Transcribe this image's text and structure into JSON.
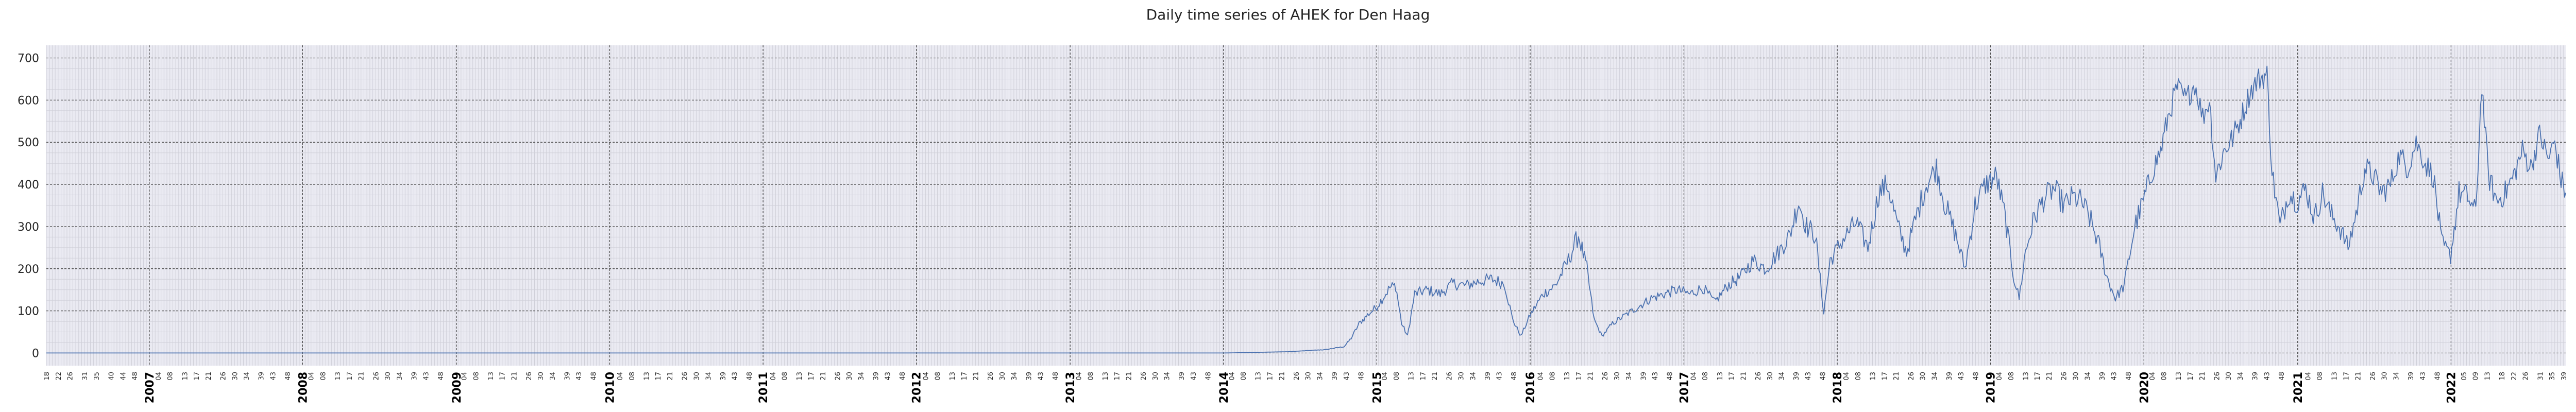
{
  "chart_data": {
    "type": "line",
    "title": "Daily time series of AHEK for Den Haag",
    "xlabel": "",
    "ylabel": "",
    "x_range": [
      "2006-05-01",
      "2022-10-01"
    ],
    "ylim": [
      -30,
      730
    ],
    "y_ticks": [
      0,
      100,
      200,
      300,
      400,
      500,
      600,
      700
    ],
    "year_ticks": [
      "2007",
      "2008",
      "2009",
      "2010",
      "2011",
      "2012",
      "2013",
      "2014",
      "2015",
      "2016",
      "2017",
      "2018",
      "2019",
      "2020",
      "2021",
      "2022"
    ],
    "week_ticks_before_2007": [
      "18",
      "22",
      "26",
      "31",
      "35",
      "40",
      "44",
      "48"
    ],
    "week_ticks_regular": [
      "04",
      "08",
      "13",
      "17",
      "21",
      "26",
      "30",
      "34",
      "39",
      "43",
      "48"
    ],
    "week_ticks_after_2022": [
      "05",
      "09",
      "13",
      "18",
      "22",
      "26",
      "31",
      "35",
      "39"
    ],
    "grid": true,
    "colors": {
      "line": "#4c72b0",
      "background": "#eaeaf2",
      "major_grid": "#3a3a3a",
      "minor_grid": "#cfcfd8"
    },
    "series": [
      {
        "values": [
          [
            "2006-05-01",
            0
          ],
          [
            "2014-01-01",
            0
          ],
          [
            "2014-06-01",
            3
          ],
          [
            "2014-09-01",
            8
          ],
          [
            "2014-10-15",
            15
          ],
          [
            "2014-11-01",
            35
          ],
          [
            "2014-11-20",
            70
          ],
          [
            "2014-12-10",
            90
          ],
          [
            "2015-01-01",
            110
          ],
          [
            "2015-02-01",
            155
          ],
          [
            "2015-02-15",
            160
          ],
          [
            "2015-03-01",
            70
          ],
          [
            "2015-03-15",
            40
          ],
          [
            "2015-04-01",
            140
          ],
          [
            "2015-05-01",
            150
          ],
          [
            "2015-06-01",
            140
          ],
          [
            "2015-07-01",
            165
          ],
          [
            "2015-08-01",
            160
          ],
          [
            "2015-09-01",
            170
          ],
          [
            "2015-10-01",
            175
          ],
          [
            "2015-11-01",
            165
          ],
          [
            "2015-11-20",
            80
          ],
          [
            "2015-12-10",
            40
          ],
          [
            "2016-01-01",
            90
          ],
          [
            "2016-02-01",
            140
          ],
          [
            "2016-03-01",
            160
          ],
          [
            "2016-04-01",
            220
          ],
          [
            "2016-04-25",
            280
          ],
          [
            "2016-05-15",
            200
          ],
          [
            "2016-06-01",
            80
          ],
          [
            "2016-06-20",
            40
          ],
          [
            "2016-07-15",
            70
          ],
          [
            "2016-08-15",
            90
          ],
          [
            "2016-09-15",
            110
          ],
          [
            "2016-10-15",
            130
          ],
          [
            "2016-11-15",
            140
          ],
          [
            "2016-12-15",
            150
          ],
          [
            "2017-01-15",
            140
          ],
          [
            "2017-02-15",
            155
          ],
          [
            "2017-03-15",
            120
          ],
          [
            "2017-04-15",
            160
          ],
          [
            "2017-05-15",
            180
          ],
          [
            "2017-06-15",
            220
          ],
          [
            "2017-07-15",
            200
          ],
          [
            "2017-08-15",
            240
          ],
          [
            "2017-09-10",
            280
          ],
          [
            "2017-10-01",
            360
          ],
          [
            "2017-10-20",
            300
          ],
          [
            "2017-11-10",
            280
          ],
          [
            "2017-11-30",
            95
          ],
          [
            "2017-12-15",
            220
          ],
          [
            "2018-01-15",
            270
          ],
          [
            "2018-02-15",
            310
          ],
          [
            "2018-03-15",
            250
          ],
          [
            "2018-04-10",
            380
          ],
          [
            "2018-05-01",
            400
          ],
          [
            "2018-05-25",
            300
          ],
          [
            "2018-06-15",
            240
          ],
          [
            "2018-07-10",
            330
          ],
          [
            "2018-08-01",
            400
          ],
          [
            "2018-08-25",
            440
          ],
          [
            "2018-09-15",
            350
          ],
          [
            "2018-10-10",
            280
          ],
          [
            "2018-11-01",
            200
          ],
          [
            "2018-11-25",
            350
          ],
          [
            "2018-12-20",
            400
          ],
          [
            "2019-01-15",
            420
          ],
          [
            "2019-02-05",
            320
          ],
          [
            "2019-02-25",
            180
          ],
          [
            "2019-03-10",
            130
          ],
          [
            "2019-03-25",
            240
          ],
          [
            "2019-04-15",
            320
          ],
          [
            "2019-05-10",
            370
          ],
          [
            "2019-06-01",
            390
          ],
          [
            "2019-06-25",
            350
          ],
          [
            "2019-07-15",
            370
          ],
          [
            "2019-08-05",
            360
          ],
          [
            "2019-08-25",
            320
          ],
          [
            "2019-09-15",
            260
          ],
          [
            "2019-10-05",
            180
          ],
          [
            "2019-10-25",
            130
          ],
          [
            "2019-11-15",
            160
          ],
          [
            "2019-12-10",
            300
          ],
          [
            "2019-12-31",
            360
          ],
          [
            "2020-01-20",
            430
          ],
          [
            "2020-02-10",
            480
          ],
          [
            "2020-03-01",
            570
          ],
          [
            "2020-03-20",
            630
          ],
          [
            "2020-04-10",
            600
          ],
          [
            "2020-05-01",
            640
          ],
          [
            "2020-05-20",
            560
          ],
          [
            "2020-06-05",
            600
          ],
          [
            "2020-06-20",
            420
          ],
          [
            "2020-07-10",
            480
          ],
          [
            "2020-07-30",
            510
          ],
          [
            "2020-08-20",
            560
          ],
          [
            "2020-09-10",
            620
          ],
          [
            "2020-09-30",
            650
          ],
          [
            "2020-10-20",
            660
          ],
          [
            "2020-11-01",
            430
          ],
          [
            "2020-11-20",
            300
          ],
          [
            "2020-12-10",
            380
          ],
          [
            "2020-12-31",
            360
          ],
          [
            "2021-01-20",
            390
          ],
          [
            "2021-02-10",
            320
          ],
          [
            "2021-03-01",
            380
          ],
          [
            "2021-03-20",
            330
          ],
          [
            "2021-04-10",
            300
          ],
          [
            "2021-05-01",
            250
          ],
          [
            "2021-05-20",
            330
          ],
          [
            "2021-06-10",
            440
          ],
          [
            "2021-06-30",
            420
          ],
          [
            "2021-07-20",
            380
          ],
          [
            "2021-08-10",
            400
          ],
          [
            "2021-08-31",
            470
          ],
          [
            "2021-09-20",
            440
          ],
          [
            "2021-10-10",
            500
          ],
          [
            "2021-11-01",
            450
          ],
          [
            "2021-11-20",
            420
          ],
          [
            "2021-12-10",
            260
          ],
          [
            "2021-12-31",
            230
          ],
          [
            "2022-01-20",
            380
          ],
          [
            "2022-02-10",
            370
          ],
          [
            "2022-03-01",
            330
          ],
          [
            "2022-03-15",
            640
          ],
          [
            "2022-03-31",
            420
          ],
          [
            "2022-04-20",
            360
          ],
          [
            "2022-05-10",
            380
          ],
          [
            "2022-05-30",
            420
          ],
          [
            "2022-06-20",
            480
          ],
          [
            "2022-07-10",
            440
          ],
          [
            "2022-07-31",
            520
          ],
          [
            "2022-08-20",
            460
          ],
          [
            "2022-09-05",
            500
          ],
          [
            "2022-09-20",
            410
          ],
          [
            "2022-10-01",
            380
          ]
        ]
      }
    ]
  }
}
